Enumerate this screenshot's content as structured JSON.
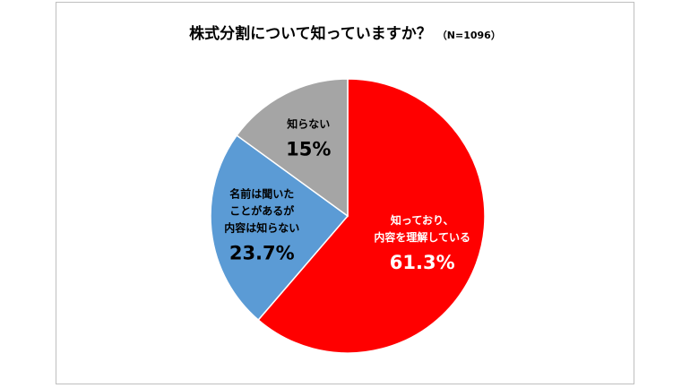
{
  "chart_data": {
    "type": "pie",
    "title": "株式分割について知っていますか？",
    "subtitle": "（N=1096）",
    "slices": [
      {
        "label_lines": [
          "知っており、",
          "内容を理解している"
        ],
        "value_label": "61.3%",
        "value": 61.3,
        "color": "#ff0000"
      },
      {
        "label_lines": [
          "名前は聞いた",
          "ことがあるが",
          "内容は知らない"
        ],
        "value_label": "23.7%",
        "value": 23.7,
        "color": "#5b9bd5"
      },
      {
        "label_lines": [
          "知らない"
        ],
        "value_label": "15%",
        "value": 15.0,
        "color": "#a5a5a5"
      }
    ],
    "start_angle": "12 o'clock",
    "direction": "clockwise"
  }
}
